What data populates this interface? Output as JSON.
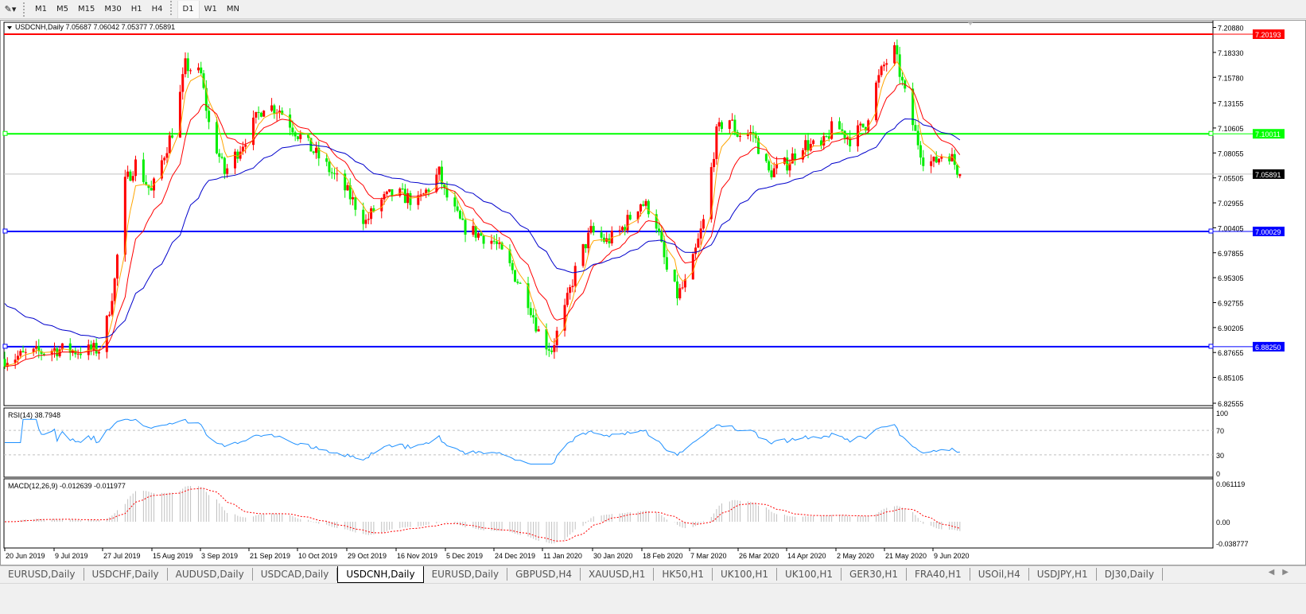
{
  "toolbar": {
    "timeframes": [
      "M1",
      "M5",
      "M15",
      "M30",
      "H1",
      "H4",
      "D1",
      "W1",
      "MN"
    ],
    "active": "D1"
  },
  "chart": {
    "symbol_info": "USDCNH,Daily  7.05687 7.06042 7.05377 7.05891",
    "current_price": "7.05891",
    "hlines": [
      {
        "value": 7.20193,
        "label": "7.20193",
        "color": "#ff0000"
      },
      {
        "value": 7.10011,
        "label": "7.10011",
        "color": "#00ff00"
      },
      {
        "value": 7.00029,
        "label": "7.00029",
        "color": "#0000ff"
      },
      {
        "value": 6.8825,
        "label": "6.88250",
        "color": "#0000ff"
      }
    ],
    "up_color": "#ff0000",
    "down_color": "#00ee00",
    "ma_colors": [
      "#ffa500",
      "#ff0000",
      "#0000cc"
    ]
  },
  "chart_data": {
    "type": "candlestick",
    "price_ticks": [
      "7.20880",
      "7.18330",
      "7.15780",
      "7.13155",
      "7.10605",
      "7.08055",
      "7.05505",
      "7.02955",
      "7.00405",
      "6.97855",
      "6.95305",
      "6.92755",
      "6.90205",
      "6.87655",
      "6.85105",
      "6.82555"
    ],
    "ylim": [
      6.82555,
      7.2088
    ],
    "date_ticks": [
      "20 Jun 2019",
      "9 Jul 2019",
      "27 Jul 2019",
      "15 Aug 2019",
      "3 Sep 2019",
      "21 Sep 2019",
      "10 Oct 2019",
      "29 Oct 2019",
      "16 Nov 2019",
      "5 Dec 2019",
      "24 Dec 2019",
      "11 Jan 2020",
      "30 Jan 2020",
      "18 Feb 2020",
      "7 Mar 2020",
      "26 Mar 2020",
      "14 Apr 2020",
      "2 May 2020",
      "21 May 2020",
      "9 Jun 2020"
    ],
    "approx_closes": [
      [
        "2019-06-20",
        6.87
      ],
      [
        "2019-06-30",
        6.875
      ],
      [
        "2019-07-09",
        6.88
      ],
      [
        "2019-07-18",
        6.878
      ],
      [
        "2019-07-27",
        6.88
      ],
      [
        "2019-08-01",
        6.95
      ],
      [
        "2019-08-05",
        7.05
      ],
      [
        "2019-08-09",
        7.07
      ],
      [
        "2019-08-15",
        7.04
      ],
      [
        "2019-08-20",
        7.08
      ],
      [
        "2019-08-24",
        7.11
      ],
      [
        "2019-08-28",
        7.17
      ],
      [
        "2019-09-03",
        7.16
      ],
      [
        "2019-09-06",
        7.11
      ],
      [
        "2019-09-12",
        7.06
      ],
      [
        "2019-09-21",
        7.1
      ],
      [
        "2019-09-27",
        7.13
      ],
      [
        "2019-10-03",
        7.125
      ],
      [
        "2019-10-10",
        7.1
      ],
      [
        "2019-10-20",
        7.07
      ],
      [
        "2019-10-29",
        7.04
      ],
      [
        "2019-11-05",
        7.01
      ],
      [
        "2019-11-10",
        7.03
      ],
      [
        "2019-11-16",
        7.04
      ],
      [
        "2019-11-25",
        7.03
      ],
      [
        "2019-12-03",
        7.06
      ],
      [
        "2019-12-05",
        7.04
      ],
      [
        "2019-12-12",
        7.005
      ],
      [
        "2019-12-24",
        6.99
      ],
      [
        "2019-12-31",
        6.96
      ],
      [
        "2020-01-06",
        6.93
      ],
      [
        "2020-01-11",
        6.89
      ],
      [
        "2020-01-15",
        6.88
      ],
      [
        "2020-01-20",
        6.92
      ],
      [
        "2020-01-25",
        6.97
      ],
      [
        "2020-01-30",
        7.0
      ],
      [
        "2020-02-05",
        6.99
      ],
      [
        "2020-02-10",
        7.0
      ],
      [
        "2020-02-18",
        7.03
      ],
      [
        "2020-02-23",
        7.02
      ],
      [
        "2020-02-28",
        6.96
      ],
      [
        "2020-03-03",
        6.935
      ],
      [
        "2020-03-07",
        6.95
      ],
      [
        "2020-03-13",
        7.01
      ],
      [
        "2020-03-18",
        7.1
      ],
      [
        "2020-03-22",
        7.12
      ],
      [
        "2020-03-26",
        7.1
      ],
      [
        "2020-04-01",
        7.1
      ],
      [
        "2020-04-07",
        7.06
      ],
      [
        "2020-04-14",
        7.07
      ],
      [
        "2020-04-20",
        7.09
      ],
      [
        "2020-04-27",
        7.085
      ],
      [
        "2020-05-02",
        7.11
      ],
      [
        "2020-05-08",
        7.095
      ],
      [
        "2020-05-14",
        7.11
      ],
      [
        "2020-05-18",
        7.15
      ],
      [
        "2020-05-21",
        7.17
      ],
      [
        "2020-05-25",
        7.185
      ],
      [
        "2020-05-29",
        7.14
      ],
      [
        "2020-06-02",
        7.1
      ],
      [
        "2020-06-05",
        7.075
      ],
      [
        "2020-06-09",
        7.07
      ],
      [
        "2020-06-14",
        7.085
      ],
      [
        "2020-06-19",
        7.05891
      ]
    ],
    "rsi": {
      "label": "RSI(14) 38.7948",
      "ticks": [
        "100",
        "70",
        "30",
        "0"
      ],
      "levels": [
        70,
        30
      ],
      "color": "#1e90ff"
    },
    "macd": {
      "label": "MACD(12,26,9) -0.012639 -0.011977",
      "ticks": [
        "0.061119",
        "0.00",
        "-0.038777"
      ],
      "signal_color": "#ff0000",
      "hist_color": "#c0c0c0"
    }
  },
  "tabs": {
    "items": [
      "EURUSD,Daily",
      "USDCHF,Daily",
      "AUDUSD,Daily",
      "USDCAD,Daily",
      "USDCNH,Daily",
      "EURUSD,Daily",
      "GBPUSD,H4",
      "XAUUSD,H1",
      "HK50,H1",
      "UK100,H1",
      "UK100,H1",
      "GER30,H1",
      "FRA40,H1",
      "USOil,H4",
      "USDJPY,H1",
      "DJ30,Daily"
    ],
    "active": 4
  }
}
